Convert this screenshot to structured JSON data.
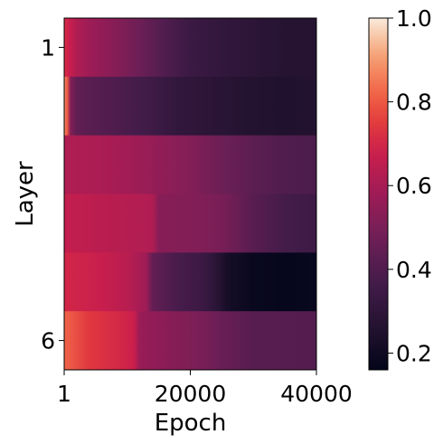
{
  "chart_data": {
    "type": "heatmap",
    "title": "",
    "xlabel": "Epoch",
    "ylabel": "Layer",
    "xlim": [
      1,
      40000
    ],
    "x_ticks": [
      1,
      20000,
      40000
    ],
    "x_tick_labels": [
      "1",
      "20000",
      "40000"
    ],
    "y_ticks": [
      1,
      6
    ],
    "y_tick_labels": [
      "1",
      "6"
    ],
    "colormap": "rocket",
    "colorbar": {
      "range": [
        0.16,
        1.0
      ],
      "ticks": [
        0.2,
        0.4,
        0.6,
        0.8,
        1.0
      ],
      "tick_labels": [
        "0.2",
        "0.4",
        "0.6",
        "0.8",
        "1.0"
      ]
    },
    "rows": [
      {
        "layer": 1,
        "points": [
          [
            1,
            0.72
          ],
          [
            700,
            0.68
          ],
          [
            2000,
            0.62
          ],
          [
            4000,
            0.58
          ],
          [
            8000,
            0.53
          ],
          [
            12000,
            0.47
          ],
          [
            16000,
            0.4
          ],
          [
            20000,
            0.34
          ],
          [
            25000,
            0.31
          ],
          [
            30000,
            0.29
          ],
          [
            35000,
            0.27
          ],
          [
            40000,
            0.27
          ]
        ]
      },
      {
        "layer": 2,
        "points": [
          [
            1,
            0.88
          ],
          [
            500,
            0.8
          ],
          [
            1000,
            0.52
          ],
          [
            2000,
            0.44
          ],
          [
            6000,
            0.41
          ],
          [
            12000,
            0.37
          ],
          [
            18000,
            0.31
          ],
          [
            25000,
            0.28
          ],
          [
            30000,
            0.26
          ],
          [
            35000,
            0.25
          ],
          [
            40000,
            0.26
          ]
        ]
      },
      {
        "layer": 3,
        "points": [
          [
            1,
            0.62
          ],
          [
            5000,
            0.61
          ],
          [
            10000,
            0.59
          ],
          [
            14000,
            0.56
          ],
          [
            20000,
            0.52
          ],
          [
            25000,
            0.47
          ],
          [
            30000,
            0.43
          ],
          [
            35000,
            0.4
          ],
          [
            40000,
            0.39
          ]
        ]
      },
      {
        "layer": 4,
        "points": [
          [
            1,
            0.66
          ],
          [
            7000,
            0.64
          ],
          [
            14000,
            0.62
          ],
          [
            15000,
            0.53
          ],
          [
            20000,
            0.52
          ],
          [
            25000,
            0.5
          ],
          [
            30000,
            0.42
          ],
          [
            35000,
            0.37
          ],
          [
            40000,
            0.35
          ]
        ]
      },
      {
        "layer": 5,
        "points": [
          [
            1,
            0.7
          ],
          [
            6000,
            0.67
          ],
          [
            10000,
            0.64
          ],
          [
            13000,
            0.58
          ],
          [
            14000,
            0.45
          ],
          [
            18000,
            0.38
          ],
          [
            22000,
            0.34
          ],
          [
            24000,
            0.29
          ],
          [
            26000,
            0.22
          ],
          [
            30000,
            0.18
          ],
          [
            35000,
            0.17
          ],
          [
            40000,
            0.18
          ]
        ]
      },
      {
        "layer": 6,
        "points": [
          [
            1,
            0.82
          ],
          [
            4000,
            0.74
          ],
          [
            8000,
            0.71
          ],
          [
            11000,
            0.68
          ],
          [
            12000,
            0.57
          ],
          [
            17000,
            0.53
          ],
          [
            22000,
            0.5
          ],
          [
            25000,
            0.46
          ],
          [
            30000,
            0.42
          ],
          [
            40000,
            0.41
          ]
        ]
      }
    ]
  }
}
